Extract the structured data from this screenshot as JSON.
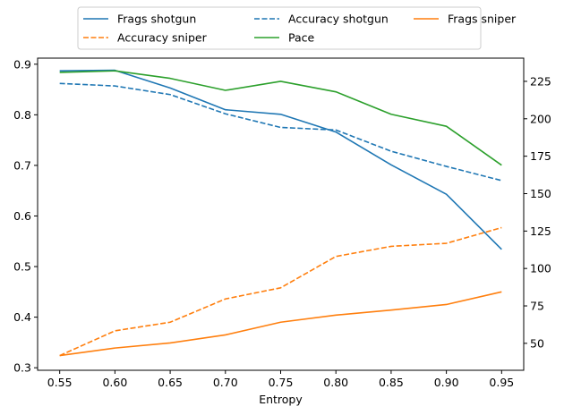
{
  "chart_data": {
    "type": "line",
    "x": [
      0.55,
      0.6,
      0.65,
      0.7,
      0.75,
      0.8,
      0.85,
      0.9,
      0.95
    ],
    "xlabel": "Entropy",
    "x_ticks": [
      "0.55",
      "0.60",
      "0.65",
      "0.70",
      "0.75",
      "0.80",
      "0.85",
      "0.90",
      "0.95"
    ],
    "xlim": [
      0.53,
      0.97
    ],
    "left_axis": {
      "ylim": [
        0.295,
        0.912
      ],
      "ticks": [
        "0.3",
        "0.4",
        "0.5",
        "0.6",
        "0.7",
        "0.8",
        "0.9"
      ]
    },
    "right_axis": {
      "ylim": [
        32,
        240.5
      ],
      "ticks": [
        "50",
        "75",
        "100",
        "125",
        "150",
        "175",
        "200",
        "225"
      ]
    },
    "series": [
      {
        "name": "Frags shotgun",
        "axis": "left",
        "style": "solid",
        "color": "#1f77b4",
        "values": [
          0.887,
          0.888,
          0.853,
          0.81,
          0.801,
          0.766,
          0.701,
          0.643,
          0.534
        ]
      },
      {
        "name": "Accuracy shotgun",
        "axis": "left",
        "style": "dashed",
        "color": "#1f77b4",
        "values": [
          0.862,
          0.857,
          0.84,
          0.802,
          0.775,
          0.77,
          0.728,
          0.698,
          0.67
        ]
      },
      {
        "name": "Frags sniper",
        "axis": "left",
        "style": "solid",
        "color": "#ff7f0e",
        "values": [
          0.324,
          0.339,
          0.349,
          0.365,
          0.39,
          0.404,
          0.414,
          0.425,
          0.45
        ]
      },
      {
        "name": "Accuracy sniper",
        "axis": "left",
        "style": "dashed",
        "color": "#ff7f0e",
        "values": [
          0.324,
          0.373,
          0.39,
          0.436,
          0.458,
          0.52,
          0.54,
          0.546,
          0.577
        ]
      },
      {
        "name": "Pace",
        "axis": "right",
        "style": "solid",
        "color": "#2ca02c",
        "values": [
          231,
          232,
          227,
          219,
          225,
          218,
          203,
          195,
          169
        ]
      }
    ],
    "legend": {
      "placement": "top-center",
      "columns": 3,
      "order": [
        "Frags shotgun",
        "Accuracy shotgun",
        "Frags sniper",
        "Accuracy sniper",
        "Pace"
      ]
    },
    "grid": false
  }
}
